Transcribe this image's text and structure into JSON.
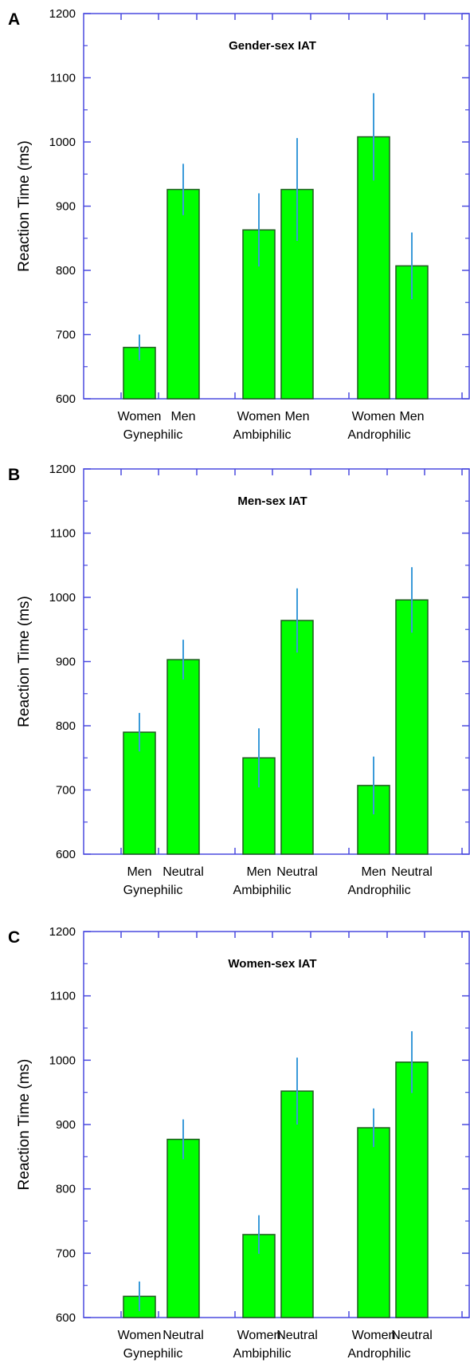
{
  "colors": {
    "bar_fill": "#00ff00",
    "bar_stroke": "#1f5a1f",
    "axis": "#4a4adf",
    "error_bar": "#3a9ad9"
  },
  "chart_data": [
    {
      "type": "bar",
      "panel": "A",
      "title": "Gender-sex  IAT",
      "ylabel": "Reaction Time (ms)",
      "ylim": [
        600,
        1200
      ],
      "yticks": [
        "600",
        "700",
        "800",
        "900",
        "1000",
        "1100",
        "1200"
      ],
      "groups": [
        {
          "name": "Gynephilic",
          "bars": [
            {
              "label": "Women",
              "value": 680,
              "error": 20
            },
            {
              "label": "Men",
              "value": 926,
              "error": 40
            }
          ]
        },
        {
          "name": "Ambiphilic",
          "bars": [
            {
              "label": "Women",
              "value": 863,
              "error": 57
            },
            {
              "label": "Men",
              "value": 926,
              "error": 80
            }
          ]
        },
        {
          "name": "Androphilic",
          "bars": [
            {
              "label": "Women",
              "value": 1008,
              "error": 68
            },
            {
              "label": "Men",
              "value": 807,
              "error": 52
            }
          ]
        }
      ]
    },
    {
      "type": "bar",
      "panel": "B",
      "title": "Men-sex IAT",
      "ylabel": "Reaction Time (ms)",
      "ylim": [
        600,
        1200
      ],
      "yticks": [
        "600",
        "700",
        "800",
        "900",
        "1000",
        "1100",
        "1200"
      ],
      "groups": [
        {
          "name": "Gynephilic",
          "bars": [
            {
              "label": "Men",
              "value": 790,
              "error": 30
            },
            {
              "label": "Neutral",
              "value": 903,
              "error": 31
            }
          ]
        },
        {
          "name": "Ambiphilic",
          "bars": [
            {
              "label": "Men",
              "value": 750,
              "error": 46
            },
            {
              "label": "Neutral",
              "value": 964,
              "error": 50
            }
          ]
        },
        {
          "name": "Androphilic",
          "bars": [
            {
              "label": "Men",
              "value": 707,
              "error": 45
            },
            {
              "label": "Neutral",
              "value": 996,
              "error": 51
            }
          ]
        }
      ]
    },
    {
      "type": "bar",
      "panel": "C",
      "title": "Women-sex IAT",
      "ylabel": "Reaction Time (ms)",
      "ylim": [
        600,
        1200
      ],
      "yticks": [
        "600",
        "700",
        "800",
        "900",
        "1000",
        "1100",
        "1200"
      ],
      "groups": [
        {
          "name": "Gynephilic",
          "bars": [
            {
              "label": "Women",
              "value": 633,
              "error": 23
            },
            {
              "label": "Neutral",
              "value": 877,
              "error": 31
            }
          ]
        },
        {
          "name": "Ambiphilic",
          "bars": [
            {
              "label": "Women",
              "value": 729,
              "error": 30
            },
            {
              "label": "Neutral",
              "value": 952,
              "error": 52
            }
          ]
        },
        {
          "name": "Androphilic",
          "bars": [
            {
              "label": "Women",
              "value": 895,
              "error": 30
            },
            {
              "label": "Neutral",
              "value": 997,
              "error": 48
            }
          ]
        }
      ]
    }
  ]
}
